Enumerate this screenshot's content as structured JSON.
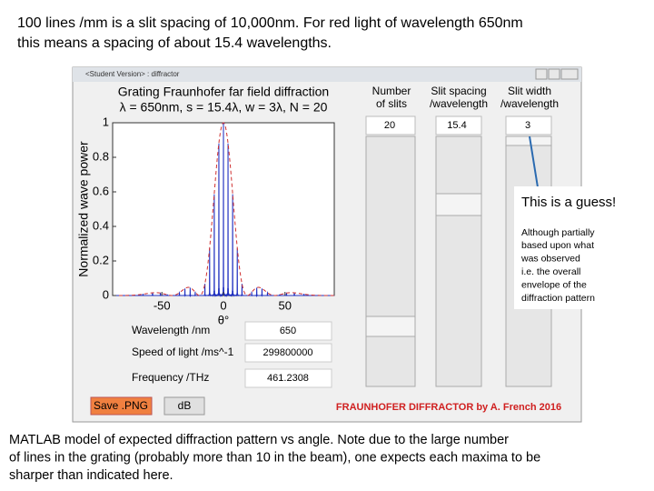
{
  "heading": {
    "lines": [
      "100 lines /mm is a slit spacing of 10,000nm. For red light of wavelength 650nm",
      "this means a spacing of about 15.4 wavelengths."
    ]
  },
  "window": {
    "title": "<Student Version> : diffractor",
    "plot": {
      "title_lines": [
        "Grating Fraunhofer far field diffraction",
        "λ = 650nm,  s = 15.4λ, w = 3λ, N = 20"
      ],
      "ylabel": "Normalized wave power",
      "xlabel": "θ°",
      "xlim": [
        -90,
        90
      ],
      "ylim": [
        0,
        1
      ],
      "xticks": [
        -50,
        0,
        50
      ],
      "yticks": [
        0,
        0.2,
        0.4,
        0.6,
        0.8,
        1
      ]
    },
    "controls": [
      {
        "header": [
          "Number",
          "of slits"
        ],
        "value": "20"
      },
      {
        "header": [
          "Slit spacing",
          "/wavelength"
        ],
        "value": "15.4"
      },
      {
        "header": [
          "Slit width",
          "/wavelength"
        ],
        "value": "3"
      }
    ],
    "fields": [
      {
        "label": "Wavelength /nm",
        "value": "650"
      },
      {
        "label": "Speed of light /ms^-1",
        "value": "299800000"
      },
      {
        "label": "Frequency /THz",
        "value": "461.2308"
      }
    ],
    "buttons": [
      "Save .PNG",
      "dB"
    ],
    "credit": "FRAUNHOFER DIFFRACTOR by A. French 2016"
  },
  "annotation": {
    "title": "This is a guess!",
    "lines": [
      "Although partially",
      "based upon what",
      "was observed",
      "i.e. the overall",
      "envelope of the",
      "diffraction pattern"
    ]
  },
  "caption": {
    "lines": [
      "MATLAB model of expected diffraction pattern vs angle. Note due to the large number",
      "of lines in the grating (probably more than 10 in the beam), one expects each maxima to be",
      "sharper than indicated here."
    ]
  }
}
